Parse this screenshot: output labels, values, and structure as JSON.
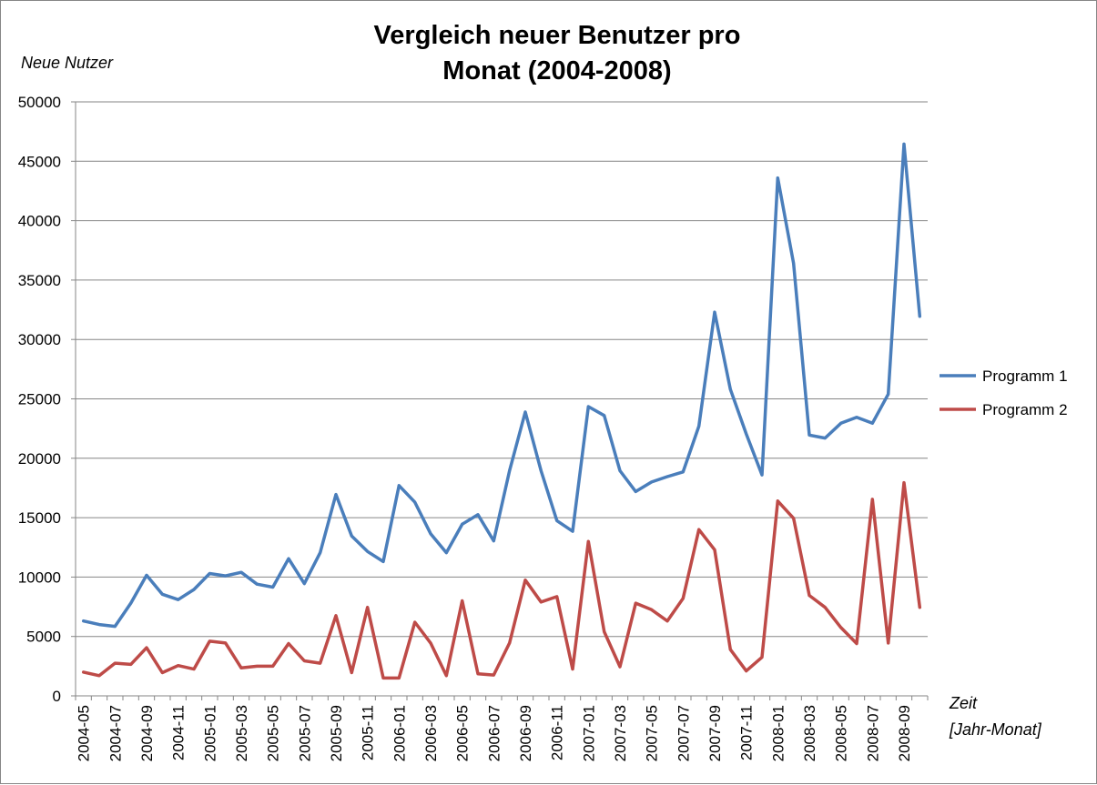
{
  "chart_data": {
    "type": "line",
    "title_lines": [
      "Vergleich neuer Benutzer pro",
      "Monat (2004-2008)"
    ],
    "ylabel": "Neue Nutzer",
    "xlabel_lines": [
      "Zeit",
      "[Jahr-Monat]"
    ],
    "ylim": [
      0,
      50000
    ],
    "y_ticks": [
      0,
      5000,
      10000,
      15000,
      20000,
      25000,
      30000,
      35000,
      40000,
      45000,
      50000
    ],
    "grid": true,
    "legend_position": "right",
    "categories": [
      "2004-05",
      "2004-06",
      "2004-07",
      "2004-08",
      "2004-09",
      "2004-10",
      "2004-11",
      "2004-12",
      "2005-01",
      "2005-02",
      "2005-03",
      "2005-04",
      "2005-05",
      "2005-06",
      "2005-07",
      "2005-08",
      "2005-09",
      "2005-10",
      "2005-11",
      "2005-12",
      "2006-01",
      "2006-02",
      "2006-03",
      "2006-04",
      "2006-05",
      "2006-06",
      "2006-07",
      "2006-08",
      "2006-09",
      "2006-10",
      "2006-11",
      "2006-12",
      "2007-01",
      "2007-02",
      "2007-03",
      "2007-04",
      "2007-05",
      "2007-06",
      "2007-07",
      "2007-08",
      "2007-09",
      "2007-10",
      "2007-11",
      "2007-12",
      "2008-01",
      "2008-02",
      "2008-03",
      "2008-04",
      "2008-05",
      "2008-06",
      "2008-07",
      "2008-08",
      "2008-09",
      "2008-10"
    ],
    "x_tick_labels": [
      "2004-05",
      "2004-07",
      "2004-09",
      "2004-11",
      "2005-01",
      "2005-03",
      "2005-05",
      "2005-07",
      "2005-09",
      "2005-11",
      "2006-01",
      "2006-03",
      "2006-05",
      "2006-07",
      "2006-09",
      "2006-11",
      "2007-01",
      "2007-03",
      "2007-05",
      "2007-07",
      "2007-09",
      "2007-11",
      "2008-01",
      "2008-03",
      "2008-05",
      "2008-07",
      "2008-09"
    ],
    "series": [
      {
        "name": "Programm 1",
        "color": "#4a7ebb",
        "values": [
          6300,
          6000,
          5850,
          7800,
          10150,
          8550,
          8100,
          8950,
          10300,
          10100,
          10400,
          9400,
          9150,
          11550,
          9450,
          12050,
          16950,
          13450,
          12150,
          11300,
          17700,
          16300,
          13650,
          12050,
          14450,
          15250,
          13050,
          18950,
          23900,
          18950,
          14750,
          13850,
          24350,
          23600,
          18950,
          17200,
          18000,
          18450,
          18850,
          22700,
          32300,
          25800,
          22050,
          18600,
          43600,
          36400,
          21950,
          21700,
          22950,
          23450,
          22950,
          25400,
          46450,
          31950
        ]
      },
      {
        "name": "Programm 2",
        "color": "#be4b48",
        "values": [
          2000,
          1700,
          2750,
          2650,
          4050,
          1950,
          2550,
          2250,
          4600,
          4450,
          2350,
          2500,
          2500,
          4400,
          2950,
          2750,
          6750,
          1950,
          7450,
          1500,
          1500,
          6200,
          4450,
          1700,
          8000,
          1850,
          1750,
          4450,
          9750,
          7900,
          8350,
          2250,
          13000,
          5400,
          2450,
          7800,
          7250,
          6300,
          8200,
          14000,
          12300,
          3900,
          2100,
          3250,
          16400,
          14950,
          8450,
          7450,
          5750,
          4400,
          16550,
          4450,
          17950,
          7450
        ]
      }
    ]
  }
}
